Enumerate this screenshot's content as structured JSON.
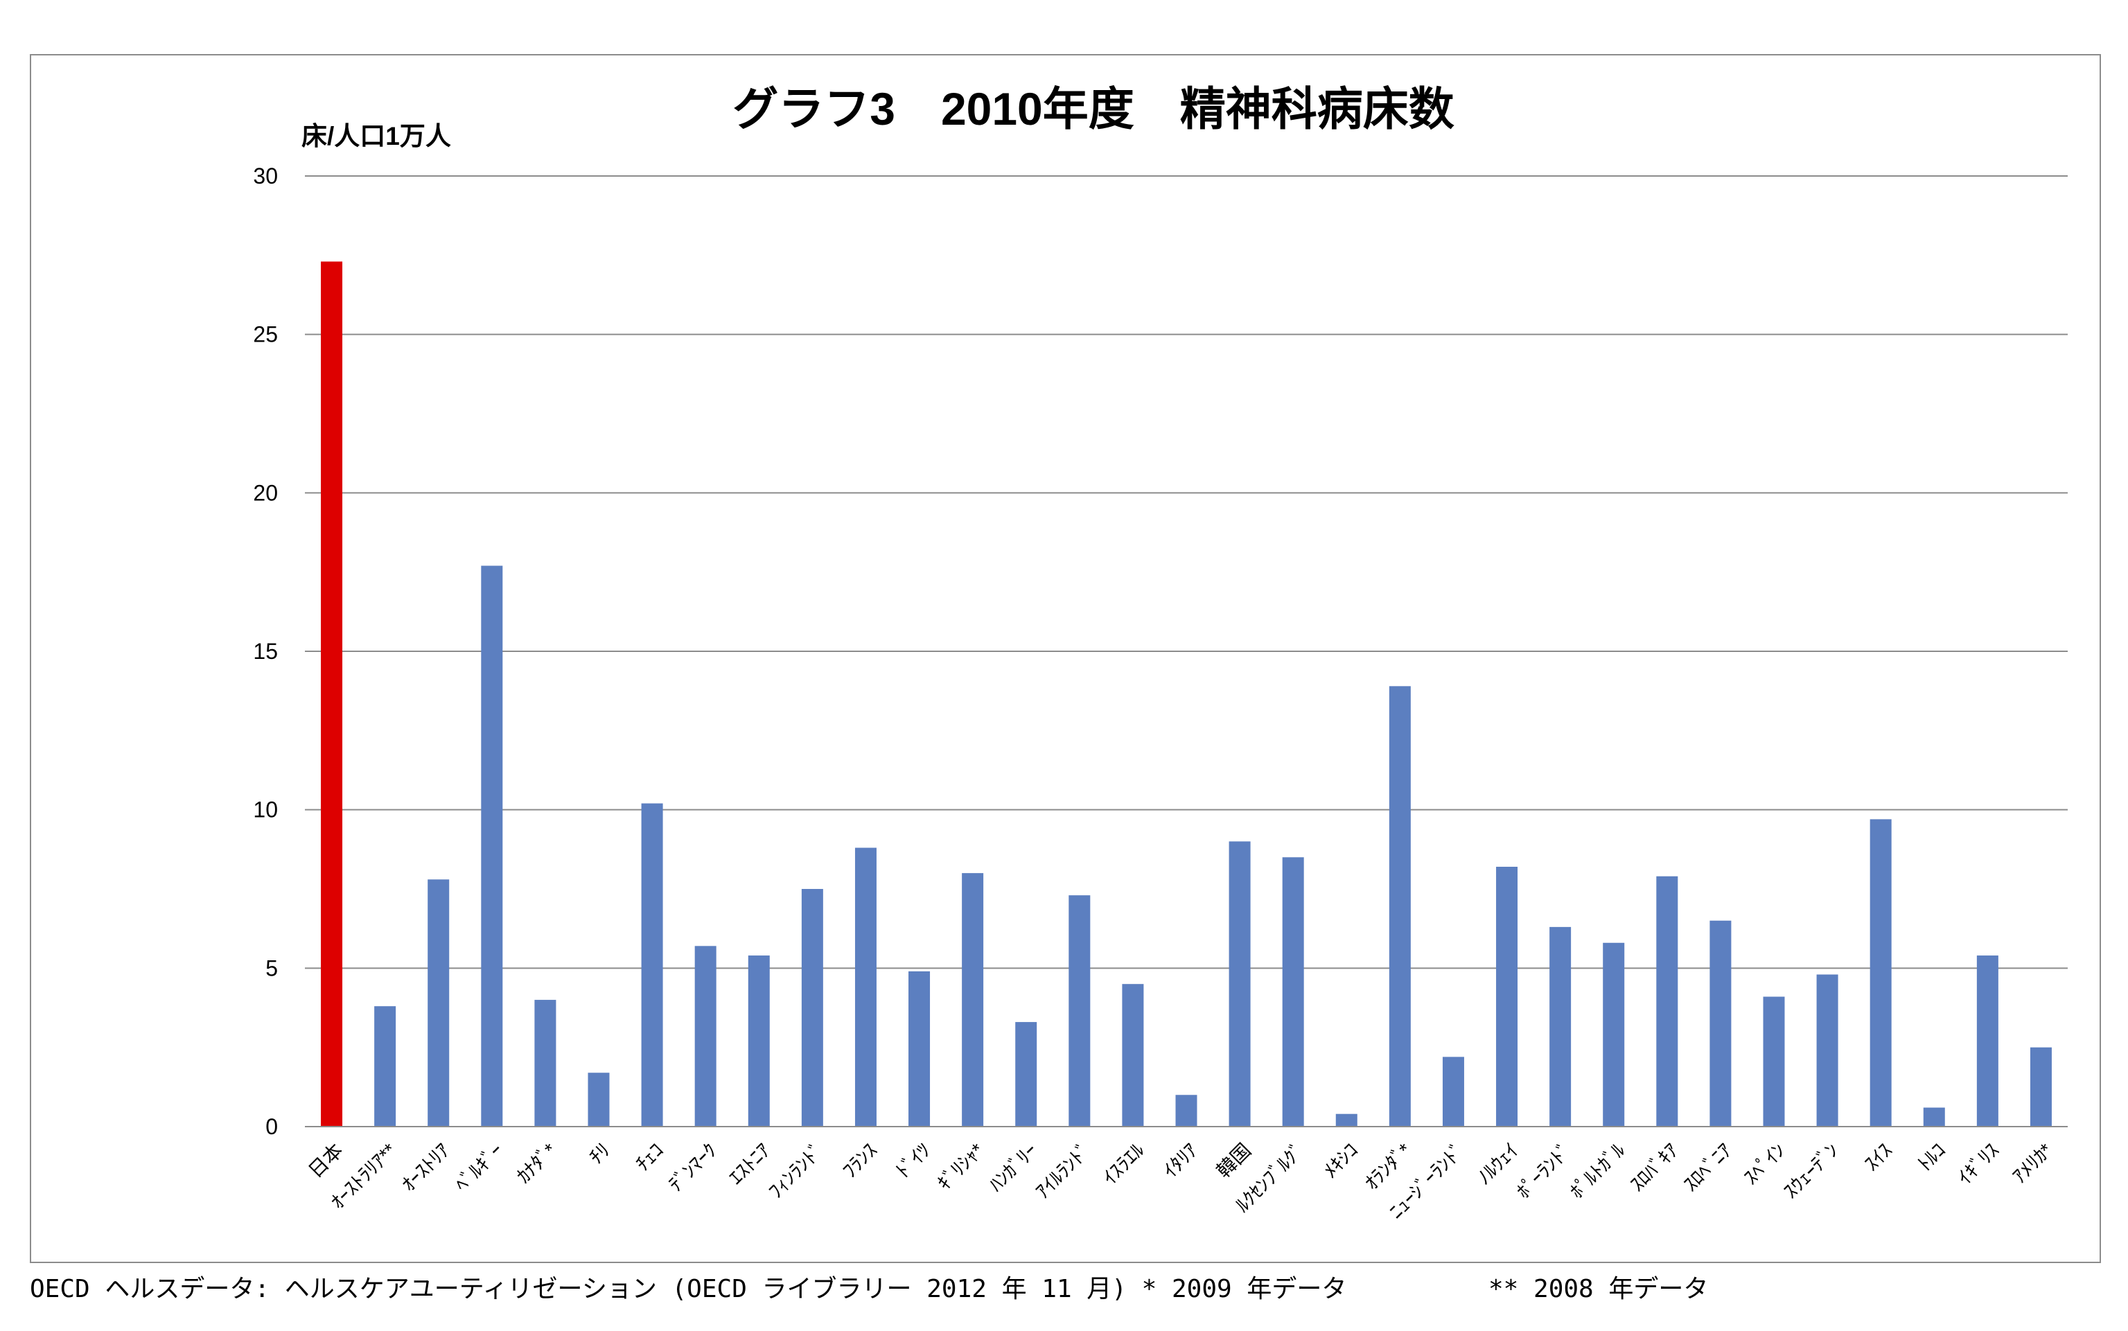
{
  "chart_data": {
    "type": "bar",
    "title": "グラフ3　2010年度　精神科病床数",
    "ylabel": "床/人口1万人",
    "xlabel": "",
    "ylim": [
      0,
      30
    ],
    "yticks": [
      0,
      5,
      10,
      15,
      20,
      25,
      30
    ],
    "grid": true,
    "legend": "none",
    "categories": [
      "日本",
      "ｵｰｽﾄﾗﾘｱ**",
      "ｵｰｽﾄﾘｱ",
      "ﾍﾞﾙｷﾞｰ",
      "ｶﾅﾀﾞ*",
      "ﾁﾘ",
      "ﾁｪｺ",
      "ﾃﾞﾝﾏｰｸ",
      "ｴｽﾄﾆｱ",
      "ﾌｨﾝﾗﾝﾄﾞ",
      "ﾌﾗﾝｽ",
      "ﾄﾞｲﾂ",
      "ｷﾞﾘｼｬ*",
      "ﾊﾝｶﾞﾘｰ",
      "ｱｲﾙﾗﾝﾄﾞ",
      "ｲｽﾗｴﾙ",
      "ｲﾀﾘｱ",
      "韓国",
      "ﾙｸｾﾝﾌﾞﾙｸﾞ",
      "ﾒｷｼｺ",
      "ｵﾗﾝﾀﾞ*",
      "ﾆｭｰｼﾞｰﾗﾝﾄﾞ",
      "ﾉﾙｳｪｲ",
      "ﾎﾟｰﾗﾝﾄﾞ",
      "ﾎﾟﾙﾄｶﾞﾙ",
      "ｽﾛﾊﾞｷｱ",
      "ｽﾛﾍﾞﾆｱ",
      "ｽﾍﾟｲﾝ",
      "ｽｳｪｰﾃﾞﾝ",
      "ｽｲｽ",
      "ﾄﾙｺ",
      "ｲｷﾞﾘｽ",
      "ｱﾒﾘｶ*"
    ],
    "values": [
      27.3,
      3.8,
      7.8,
      17.7,
      4.0,
      1.7,
      10.2,
      5.7,
      5.4,
      7.5,
      8.8,
      4.9,
      8.0,
      3.3,
      7.3,
      4.5,
      1.0,
      9.0,
      8.5,
      0.4,
      13.9,
      2.2,
      8.2,
      6.3,
      5.8,
      7.9,
      6.5,
      4.1,
      4.8,
      9.7,
      0.6,
      5.4,
      2.5
    ],
    "highlight": "日本",
    "colors": {
      "bar": "#5c7fc0",
      "highlight_bar": "#dd0000",
      "gridline": "#8c8c8c"
    }
  },
  "footer": {
    "source": "OECD ヘルスデータ: ヘルスケアユーティリゼーション (OECD ライブラリー 2012 年 11 月) * 2009 年データ",
    "note": "** 2008 年データ"
  }
}
